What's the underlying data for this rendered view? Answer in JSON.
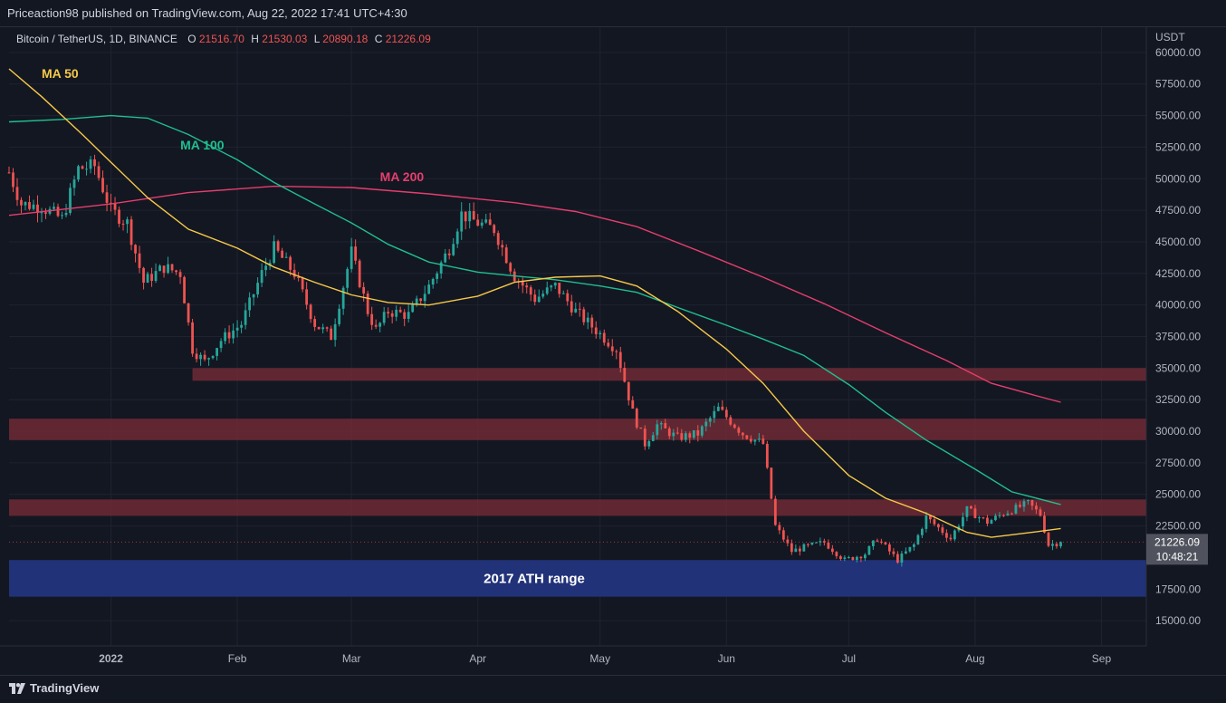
{
  "header": {
    "published": "Priceaction98 published on TradingView.com, Aug 22, 2022 17:41 UTC+4:30"
  },
  "symbol": {
    "name": "Bitcoin / TetherUS, 1D, BINANCE",
    "o_label": "O",
    "o_value": "21516.70",
    "h_label": "H",
    "h_value": "21530.03",
    "l_label": "L",
    "l_value": "20890.18",
    "c_label": "C",
    "c_value": "21226.09"
  },
  "footer": {
    "brand": "TradingView"
  },
  "colors": {
    "background": "#131722",
    "up": "#26a69a",
    "down": "#ef5350",
    "ma50": "#f7c948",
    "ma100": "#1fbf8f",
    "ma200": "#e63e6d",
    "zone": "#6e2a35",
    "ath_zone": "#22347e",
    "grid": "#1f2330",
    "axis_text": "#b2b5be"
  },
  "chart_data": {
    "type": "candlestick",
    "currency_label": "USDT",
    "ylim": [
      13000,
      62000
    ],
    "yticks": [
      "60000.00",
      "57500.00",
      "55000.00",
      "52500.00",
      "50000.00",
      "47500.00",
      "45000.00",
      "42500.00",
      "40000.00",
      "37500.00",
      "35000.00",
      "32500.00",
      "30000.00",
      "27500.00",
      "25000.00",
      "22500.00",
      "17500.00",
      "15000.00"
    ],
    "xlim": [
      "2021-12-07",
      "2022-09-12"
    ],
    "xticks": [
      {
        "label": "2022",
        "date": "2022-01-01"
      },
      {
        "label": "Feb",
        "date": "2022-02-01"
      },
      {
        "label": "Mar",
        "date": "2022-03-01"
      },
      {
        "label": "Apr",
        "date": "2022-04-01"
      },
      {
        "label": "May",
        "date": "2022-05-01"
      },
      {
        "label": "Jun",
        "date": "2022-06-01"
      },
      {
        "label": "Jul",
        "date": "2022-07-01"
      },
      {
        "label": "Aug",
        "date": "2022-08-01"
      },
      {
        "label": "Sep",
        "date": "2022-09-01"
      }
    ],
    "last_price": {
      "price": "21226.09",
      "countdown": "10:48:21",
      "value": 21226.09
    },
    "zones": [
      {
        "y0": 34000,
        "y1": 35000,
        "x0": "2022-01-21",
        "x1": "2022-09-12",
        "kind": "resistance"
      },
      {
        "y0": 29300,
        "y1": 31000,
        "x0": "2021-12-07",
        "x1": "2022-09-12",
        "kind": "resistance"
      },
      {
        "y0": 23300,
        "y1": 24600,
        "x0": "2021-12-07",
        "x1": "2022-09-12",
        "kind": "resistance"
      },
      {
        "y0": 16900,
        "y1": 19800,
        "x0": "2021-12-07",
        "x1": "2022-09-12",
        "kind": "ath",
        "label": "2017 ATH range"
      }
    ],
    "ma_labels": [
      {
        "name": "MA 50",
        "date": "2021-12-15",
        "y": 58000,
        "color_key": "ma50"
      },
      {
        "name": "MA 100",
        "date": "2022-01-18",
        "y": 52300,
        "color_key": "ma100"
      },
      {
        "name": "MA 200",
        "date": "2022-03-08",
        "y": 49800,
        "color_key": "ma200"
      }
    ],
    "ma50": [
      [
        "2021-12-07",
        58700
      ],
      [
        "2021-12-15",
        56500
      ],
      [
        "2021-12-25",
        53500
      ],
      [
        "2022-01-01",
        51300
      ],
      [
        "2022-01-10",
        48500
      ],
      [
        "2022-01-20",
        46000
      ],
      [
        "2022-02-01",
        44500
      ],
      [
        "2022-02-10",
        43000
      ],
      [
        "2022-02-20",
        41800
      ],
      [
        "2022-03-01",
        40800
      ],
      [
        "2022-03-10",
        40200
      ],
      [
        "2022-03-20",
        40000
      ],
      [
        "2022-04-01",
        40700
      ],
      [
        "2022-04-10",
        41800
      ],
      [
        "2022-04-20",
        42200
      ],
      [
        "2022-05-01",
        42300
      ],
      [
        "2022-05-10",
        41500
      ],
      [
        "2022-05-20",
        39500
      ],
      [
        "2022-06-01",
        36500
      ],
      [
        "2022-06-10",
        33800
      ],
      [
        "2022-06-20",
        30000
      ],
      [
        "2022-07-01",
        26500
      ],
      [
        "2022-07-10",
        24700
      ],
      [
        "2022-07-20",
        23500
      ],
      [
        "2022-07-30",
        22000
      ],
      [
        "2022-08-05",
        21600
      ],
      [
        "2022-08-15",
        22000
      ],
      [
        "2022-08-22",
        22300
      ]
    ],
    "ma100": [
      [
        "2021-12-07",
        54500
      ],
      [
        "2021-12-20",
        54700
      ],
      [
        "2022-01-01",
        55000
      ],
      [
        "2022-01-10",
        54800
      ],
      [
        "2022-01-20",
        53500
      ],
      [
        "2022-02-01",
        51500
      ],
      [
        "2022-02-10",
        49700
      ],
      [
        "2022-02-20",
        48000
      ],
      [
        "2022-03-01",
        46500
      ],
      [
        "2022-03-10",
        44800
      ],
      [
        "2022-03-20",
        43400
      ],
      [
        "2022-04-01",
        42600
      ],
      [
        "2022-04-10",
        42300
      ],
      [
        "2022-04-20",
        42000
      ],
      [
        "2022-05-01",
        41500
      ],
      [
        "2022-05-10",
        41000
      ],
      [
        "2022-05-20",
        39800
      ],
      [
        "2022-06-01",
        38400
      ],
      [
        "2022-06-10",
        37300
      ],
      [
        "2022-06-20",
        36000
      ],
      [
        "2022-07-01",
        33700
      ],
      [
        "2022-07-10",
        31500
      ],
      [
        "2022-07-20",
        29300
      ],
      [
        "2022-08-01",
        27000
      ],
      [
        "2022-08-10",
        25200
      ],
      [
        "2022-08-22",
        24200
      ]
    ],
    "ma200": [
      [
        "2021-12-07",
        47100
      ],
      [
        "2022-01-01",
        48000
      ],
      [
        "2022-01-20",
        48900
      ],
      [
        "2022-02-10",
        49400
      ],
      [
        "2022-03-01",
        49300
      ],
      [
        "2022-03-20",
        48800
      ],
      [
        "2022-04-10",
        48100
      ],
      [
        "2022-04-25",
        47400
      ],
      [
        "2022-05-10",
        46200
      ],
      [
        "2022-05-25",
        44300
      ],
      [
        "2022-06-10",
        42200
      ],
      [
        "2022-06-25",
        40100
      ],
      [
        "2022-07-10",
        37800
      ],
      [
        "2022-07-25",
        35600
      ],
      [
        "2022-08-05",
        33800
      ],
      [
        "2022-08-15",
        32900
      ],
      [
        "2022-08-22",
        32300
      ]
    ],
    "price_path": [
      [
        "2021-12-07",
        50500
      ],
      [
        "2021-12-10",
        48000
      ],
      [
        "2021-12-15",
        47800
      ],
      [
        "2021-12-20",
        46800
      ],
      [
        "2021-12-24",
        50800
      ],
      [
        "2021-12-28",
        51000
      ],
      [
        "2022-01-01",
        47500
      ],
      [
        "2022-01-05",
        46500
      ],
      [
        "2022-01-09",
        41800
      ],
      [
        "2022-01-14",
        43000
      ],
      [
        "2022-01-18",
        42500
      ],
      [
        "2022-01-21",
        36500
      ],
      [
        "2022-01-24",
        35500
      ],
      [
        "2022-01-28",
        37200
      ],
      [
        "2022-02-02",
        38500
      ],
      [
        "2022-02-07",
        42500
      ],
      [
        "2022-02-10",
        44500
      ],
      [
        "2022-02-15",
        42500
      ],
      [
        "2022-02-20",
        38500
      ],
      [
        "2022-02-24",
        37500
      ],
      [
        "2022-03-01",
        44200
      ],
      [
        "2022-03-05",
        39500
      ],
      [
        "2022-03-07",
        38000
      ],
      [
        "2022-03-10",
        39500
      ],
      [
        "2022-03-15",
        39200
      ],
      [
        "2022-03-20",
        41500
      ],
      [
        "2022-03-25",
        44500
      ],
      [
        "2022-03-28",
        47200
      ],
      [
        "2022-04-01",
        46500
      ],
      [
        "2022-04-05",
        46000
      ],
      [
        "2022-04-10",
        42300
      ],
      [
        "2022-04-15",
        40500
      ],
      [
        "2022-04-20",
        41500
      ],
      [
        "2022-04-25",
        39500
      ],
      [
        "2022-04-30",
        38000
      ],
      [
        "2022-05-05",
        36500
      ],
      [
        "2022-05-09",
        31500
      ],
      [
        "2022-05-12",
        29000
      ],
      [
        "2022-05-15",
        30500
      ],
      [
        "2022-05-20",
        29500
      ],
      [
        "2022-05-25",
        29800
      ],
      [
        "2022-05-30",
        31800
      ],
      [
        "2022-06-05",
        29800
      ],
      [
        "2022-06-10",
        29000
      ],
      [
        "2022-06-13",
        22500
      ],
      [
        "2022-06-17",
        20500
      ],
      [
        "2022-06-20",
        20800
      ],
      [
        "2022-06-25",
        21200
      ],
      [
        "2022-06-30",
        19800
      ],
      [
        "2022-07-05",
        20300
      ],
      [
        "2022-07-08",
        21500
      ],
      [
        "2022-07-13",
        19800
      ],
      [
        "2022-07-17",
        21000
      ],
      [
        "2022-07-20",
        23200
      ],
      [
        "2022-07-26",
        21500
      ],
      [
        "2022-07-30",
        23800
      ],
      [
        "2022-08-04",
        22800
      ],
      [
        "2022-08-08",
        23500
      ],
      [
        "2022-08-14",
        24300
      ],
      [
        "2022-08-17",
        23400
      ],
      [
        "2022-08-19",
        21000
      ],
      [
        "2022-08-22",
        21226
      ]
    ]
  }
}
